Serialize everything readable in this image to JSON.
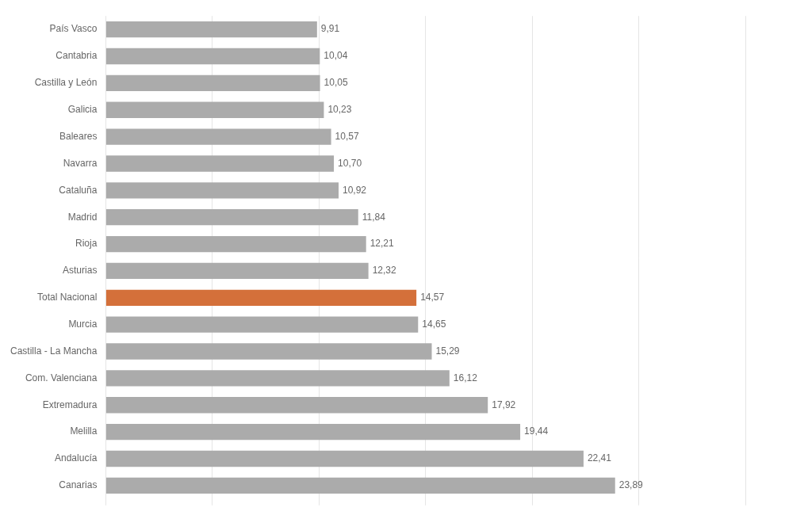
{
  "chart_data": {
    "type": "bar",
    "orientation": "horizontal",
    "categories": [
      "Canarias",
      "Andalucía",
      "Melilla",
      "Extremadura",
      "Com. Valenciana",
      "Castilla - La Mancha",
      "Murcia",
      "Total Nacional",
      "Asturias",
      "Rioja",
      "Madrid",
      "Cataluña",
      "Navarra",
      "Baleares",
      "Galicia",
      "Castilla y León",
      "Cantabria",
      "País Vasco"
    ],
    "values": [
      23.89,
      22.41,
      19.44,
      17.92,
      16.12,
      15.29,
      14.65,
      14.57,
      12.32,
      12.21,
      11.84,
      10.92,
      10.7,
      10.57,
      10.23,
      10.05,
      10.04,
      9.91
    ],
    "value_labels": [
      "23,89",
      "22,41",
      "19,44",
      "17,92",
      "16,12",
      "15,29",
      "14,65",
      "14,57",
      "12,32",
      "12,21",
      "11,84",
      "10,92",
      "10,70",
      "10,57",
      "10,23",
      "10,05",
      "10,04",
      "9,91"
    ],
    "data_labels": true,
    "colors": [
      "#ABABAB",
      "#ABABAB",
      "#ABABAB",
      "#ABABAB",
      "#ABABAB",
      "#ABABAB",
      "#ABABAB",
      "#D4703A",
      "#ABABAB",
      "#ABABAB",
      "#ABABAB",
      "#ABABAB",
      "#ABABAB",
      "#ABABAB",
      "#ABABAB",
      "#ABABAB",
      "#ABABAB",
      "#ABABAB"
    ],
    "xlim": [
      0,
      30
    ],
    "xticks": [
      0,
      5,
      10,
      15,
      20,
      25,
      30
    ],
    "tick_labels": "y",
    "grid": true
  }
}
